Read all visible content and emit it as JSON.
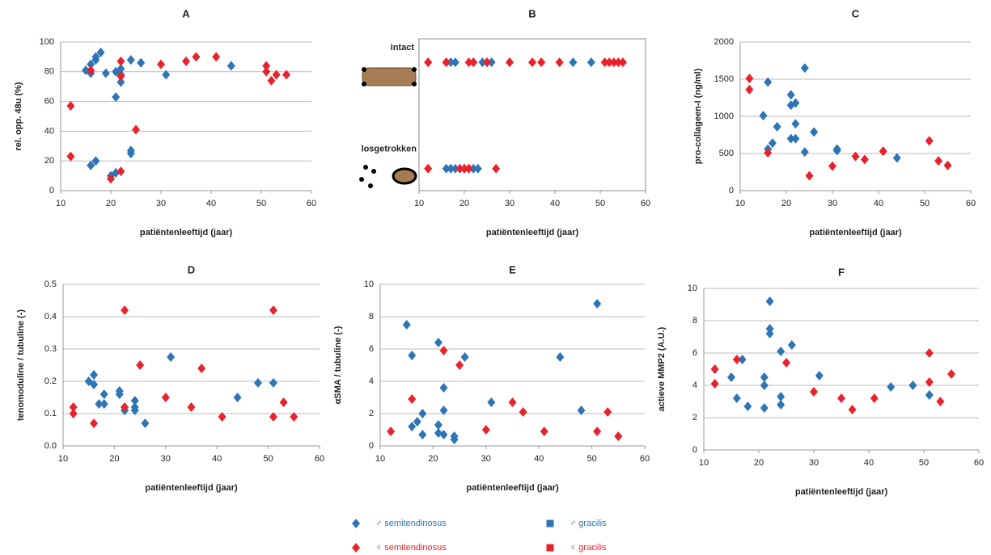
{
  "chart_data": [
    {
      "type": "scatter",
      "title": "A",
      "xlabel": "patiëntenleeftijd (jaar)",
      "ylabel": "rel. opp. 48u (%)",
      "xlim": [
        10,
        60
      ],
      "xticks": [
        10,
        20,
        30,
        40,
        50,
        60
      ],
      "ylim": [
        0,
        100
      ],
      "yticks": [
        0,
        20,
        40,
        60,
        80,
        100
      ],
      "grid": true,
      "series": [
        {
          "color": "#2e75b6",
          "marker": "diamond",
          "x": [
            15,
            16,
            16,
            17,
            18,
            17,
            19,
            21,
            21,
            22,
            22,
            22,
            24,
            26,
            31,
            44,
            16,
            17,
            24,
            24,
            21,
            20
          ],
          "values": [
            81,
            85,
            79,
            88,
            93,
            90,
            79,
            63,
            80,
            82,
            78,
            73,
            88,
            86,
            78,
            84,
            17,
            20,
            25,
            27,
            12,
            10
          ]
        },
        {
          "color": "#e8232b",
          "marker": "diamond",
          "x": [
            12,
            12,
            16,
            22,
            22,
            30,
            35,
            37,
            41,
            51,
            51,
            52,
            53,
            55,
            20,
            22,
            25
          ],
          "values": [
            57,
            23,
            81,
            87,
            77,
            85,
            87,
            90,
            90,
            84,
            80,
            74,
            78,
            78,
            8,
            13,
            41
          ]
        }
      ]
    },
    {
      "type": "strip",
      "title": "B",
      "xlabel": "patiëntenleeftijd (jaar)",
      "xlim": [
        10,
        60
      ],
      "xticks": [
        10,
        20,
        30,
        40,
        50,
        60
      ],
      "groups": [
        {
          "label": "intact",
          "series": [
            {
              "color": "#2e75b6",
              "marker": "diamond",
              "x": [
                16,
                17,
                18,
                22,
                24,
                25,
                26,
                30,
                44,
                48
              ]
            },
            {
              "color": "#e8232b",
              "marker": "diamond",
              "x": [
                12,
                16,
                21,
                22,
                25,
                30,
                35,
                37,
                41,
                51,
                52,
                53,
                54,
                55
              ]
            }
          ]
        },
        {
          "label": "losgetrokken",
          "series": [
            {
              "color": "#2e75b6",
              "marker": "diamond",
              "x": [
                16,
                17,
                18,
                20,
                21,
                22,
                23
              ]
            },
            {
              "color": "#e8232b",
              "marker": "diamond",
              "x": [
                12,
                19,
                20,
                21,
                27
              ]
            }
          ]
        }
      ]
    },
    {
      "type": "scatter",
      "title": "C",
      "xlabel": "patiëntenleeftijd (jaar)",
      "ylabel": "pro-collageen-I (ng/ml)",
      "xlim": [
        10,
        60
      ],
      "xticks": [
        10,
        20,
        30,
        40,
        50,
        60
      ],
      "ylim": [
        0,
        2000
      ],
      "yticks": [
        0,
        500,
        1000,
        1500,
        2000
      ],
      "grid": true,
      "series": [
        {
          "color": "#2e75b6",
          "marker": "diamond",
          "x": [
            15,
            16,
            16,
            17,
            18,
            21,
            21,
            22,
            21,
            22,
            22,
            24,
            24,
            26,
            31,
            31,
            44
          ],
          "values": [
            1010,
            1460,
            560,
            640,
            860,
            1290,
            1150,
            1180,
            700,
            700,
            900,
            520,
            1650,
            790,
            560,
            540,
            440
          ]
        },
        {
          "color": "#e8232b",
          "marker": "diamond",
          "x": [
            12,
            12,
            16,
            25,
            30,
            35,
            37,
            41,
            51,
            53,
            55
          ],
          "values": [
            1510,
            1360,
            510,
            200,
            330,
            460,
            420,
            530,
            670,
            400,
            340
          ]
        }
      ]
    },
    {
      "type": "scatter",
      "title": "D",
      "xlabel": "patiëntenleeftijd (jaar)",
      "ylabel": "tenomoduline / tubuline (-)",
      "xlim": [
        10,
        60
      ],
      "xticks": [
        10,
        20,
        30,
        40,
        50,
        60
      ],
      "ylim": [
        0,
        0.5
      ],
      "yticks": [
        {
          "value": 0,
          "label": "0.0"
        },
        0.1,
        0.2,
        0.3,
        0.4,
        0.5
      ],
      "grid": true,
      "series": [
        {
          "color": "#2e75b6",
          "marker": "diamond",
          "x": [
            15,
            16,
            16,
            17,
            18,
            18,
            21,
            21,
            22,
            22,
            24,
            24,
            24,
            26,
            31,
            44,
            48,
            51
          ],
          "values": [
            0.2,
            0.22,
            0.19,
            0.13,
            0.16,
            0.13,
            0.16,
            0.17,
            0.12,
            0.11,
            0.14,
            0.12,
            0.11,
            0.07,
            0.275,
            0.15,
            0.195,
            0.195
          ]
        },
        {
          "color": "#e8232b",
          "marker": "diamond",
          "x": [
            12,
            12,
            16,
            22,
            22,
            25,
            30,
            35,
            37,
            41,
            51,
            51,
            53,
            55
          ],
          "values": [
            0.12,
            0.1,
            0.07,
            0.42,
            0.12,
            0.25,
            0.15,
            0.12,
            0.24,
            0.09,
            0.42,
            0.09,
            0.135,
            0.09
          ]
        }
      ]
    },
    {
      "type": "scatter",
      "title": "E",
      "xlabel": "patiëntenleeftijd (jaar)",
      "ylabel": "αSMA / tubuline (-)",
      "xlim": [
        10,
        60
      ],
      "xticks": [
        10,
        20,
        30,
        40,
        50,
        60
      ],
      "ylim": [
        0,
        10
      ],
      "yticks": [
        0,
        2,
        4,
        6,
        8,
        10
      ],
      "grid": true,
      "series": [
        {
          "color": "#2e75b6",
          "marker": "diamond",
          "x": [
            15,
            16,
            16,
            17,
            18,
            18,
            21,
            21,
            21,
            22,
            22,
            22,
            24,
            24,
            26,
            31,
            44,
            48,
            51
          ],
          "values": [
            7.5,
            5.6,
            1.2,
            1.5,
            2,
            0.7,
            6.4,
            1.3,
            0.8,
            3.6,
            2.2,
            0.7,
            0.6,
            0.4,
            5.5,
            2.7,
            5.5,
            2.2,
            8.8
          ]
        },
        {
          "color": "#e8232b",
          "marker": "diamond",
          "x": [
            12,
            16,
            22,
            25,
            30,
            35,
            37,
            41,
            51,
            53,
            55
          ],
          "values": [
            0.9,
            2.9,
            5.9,
            5,
            1,
            2.7,
            2.1,
            0.9,
            0.9,
            2.1,
            0.6
          ]
        }
      ]
    },
    {
      "type": "scatter",
      "title": "F",
      "xlabel": "patiëntenleeftijd (jaar)",
      "ylabel": "actieve MMP2 (A.U.)",
      "xlim": [
        10,
        60
      ],
      "xticks": [
        10,
        20,
        30,
        40,
        50,
        60
      ],
      "ylim": [
        0,
        10
      ],
      "yticks": [
        0,
        2,
        4,
        6,
        8,
        10
      ],
      "grid": true,
      "series": [
        {
          "color": "#2e75b6",
          "marker": "diamond",
          "x": [
            15,
            16,
            17,
            18,
            21,
            21,
            21,
            22,
            22,
            22,
            24,
            24,
            24,
            26,
            31,
            44,
            48,
            51
          ],
          "values": [
            4.5,
            3.2,
            5.6,
            2.7,
            4.5,
            4,
            2.6,
            9.2,
            7.5,
            7.2,
            6.1,
            3.3,
            2.8,
            6.5,
            4.6,
            3.9,
            4,
            3.4
          ]
        },
        {
          "color": "#e8232b",
          "marker": "diamond",
          "x": [
            12,
            12,
            16,
            25,
            30,
            35,
            37,
            41,
            51,
            51,
            53,
            55
          ],
          "values": [
            5,
            4.1,
            5.6,
            5.4,
            3.6,
            3.2,
            2.5,
            3.2,
            6,
            4.2,
            3,
            4.7
          ]
        }
      ]
    }
  ],
  "legend": [
    {
      "name": "♂ semitendinosus",
      "color": "#2e75b6",
      "marker": "diamond"
    },
    {
      "name": "♀ semitendinosus",
      "color": "#e8232b",
      "marker": "diamond"
    },
    {
      "name": "♂ gracilis",
      "color": "#2e75b6",
      "marker": "square"
    },
    {
      "name": "♀ gracilis",
      "color": "#e8232b",
      "marker": "square"
    }
  ]
}
